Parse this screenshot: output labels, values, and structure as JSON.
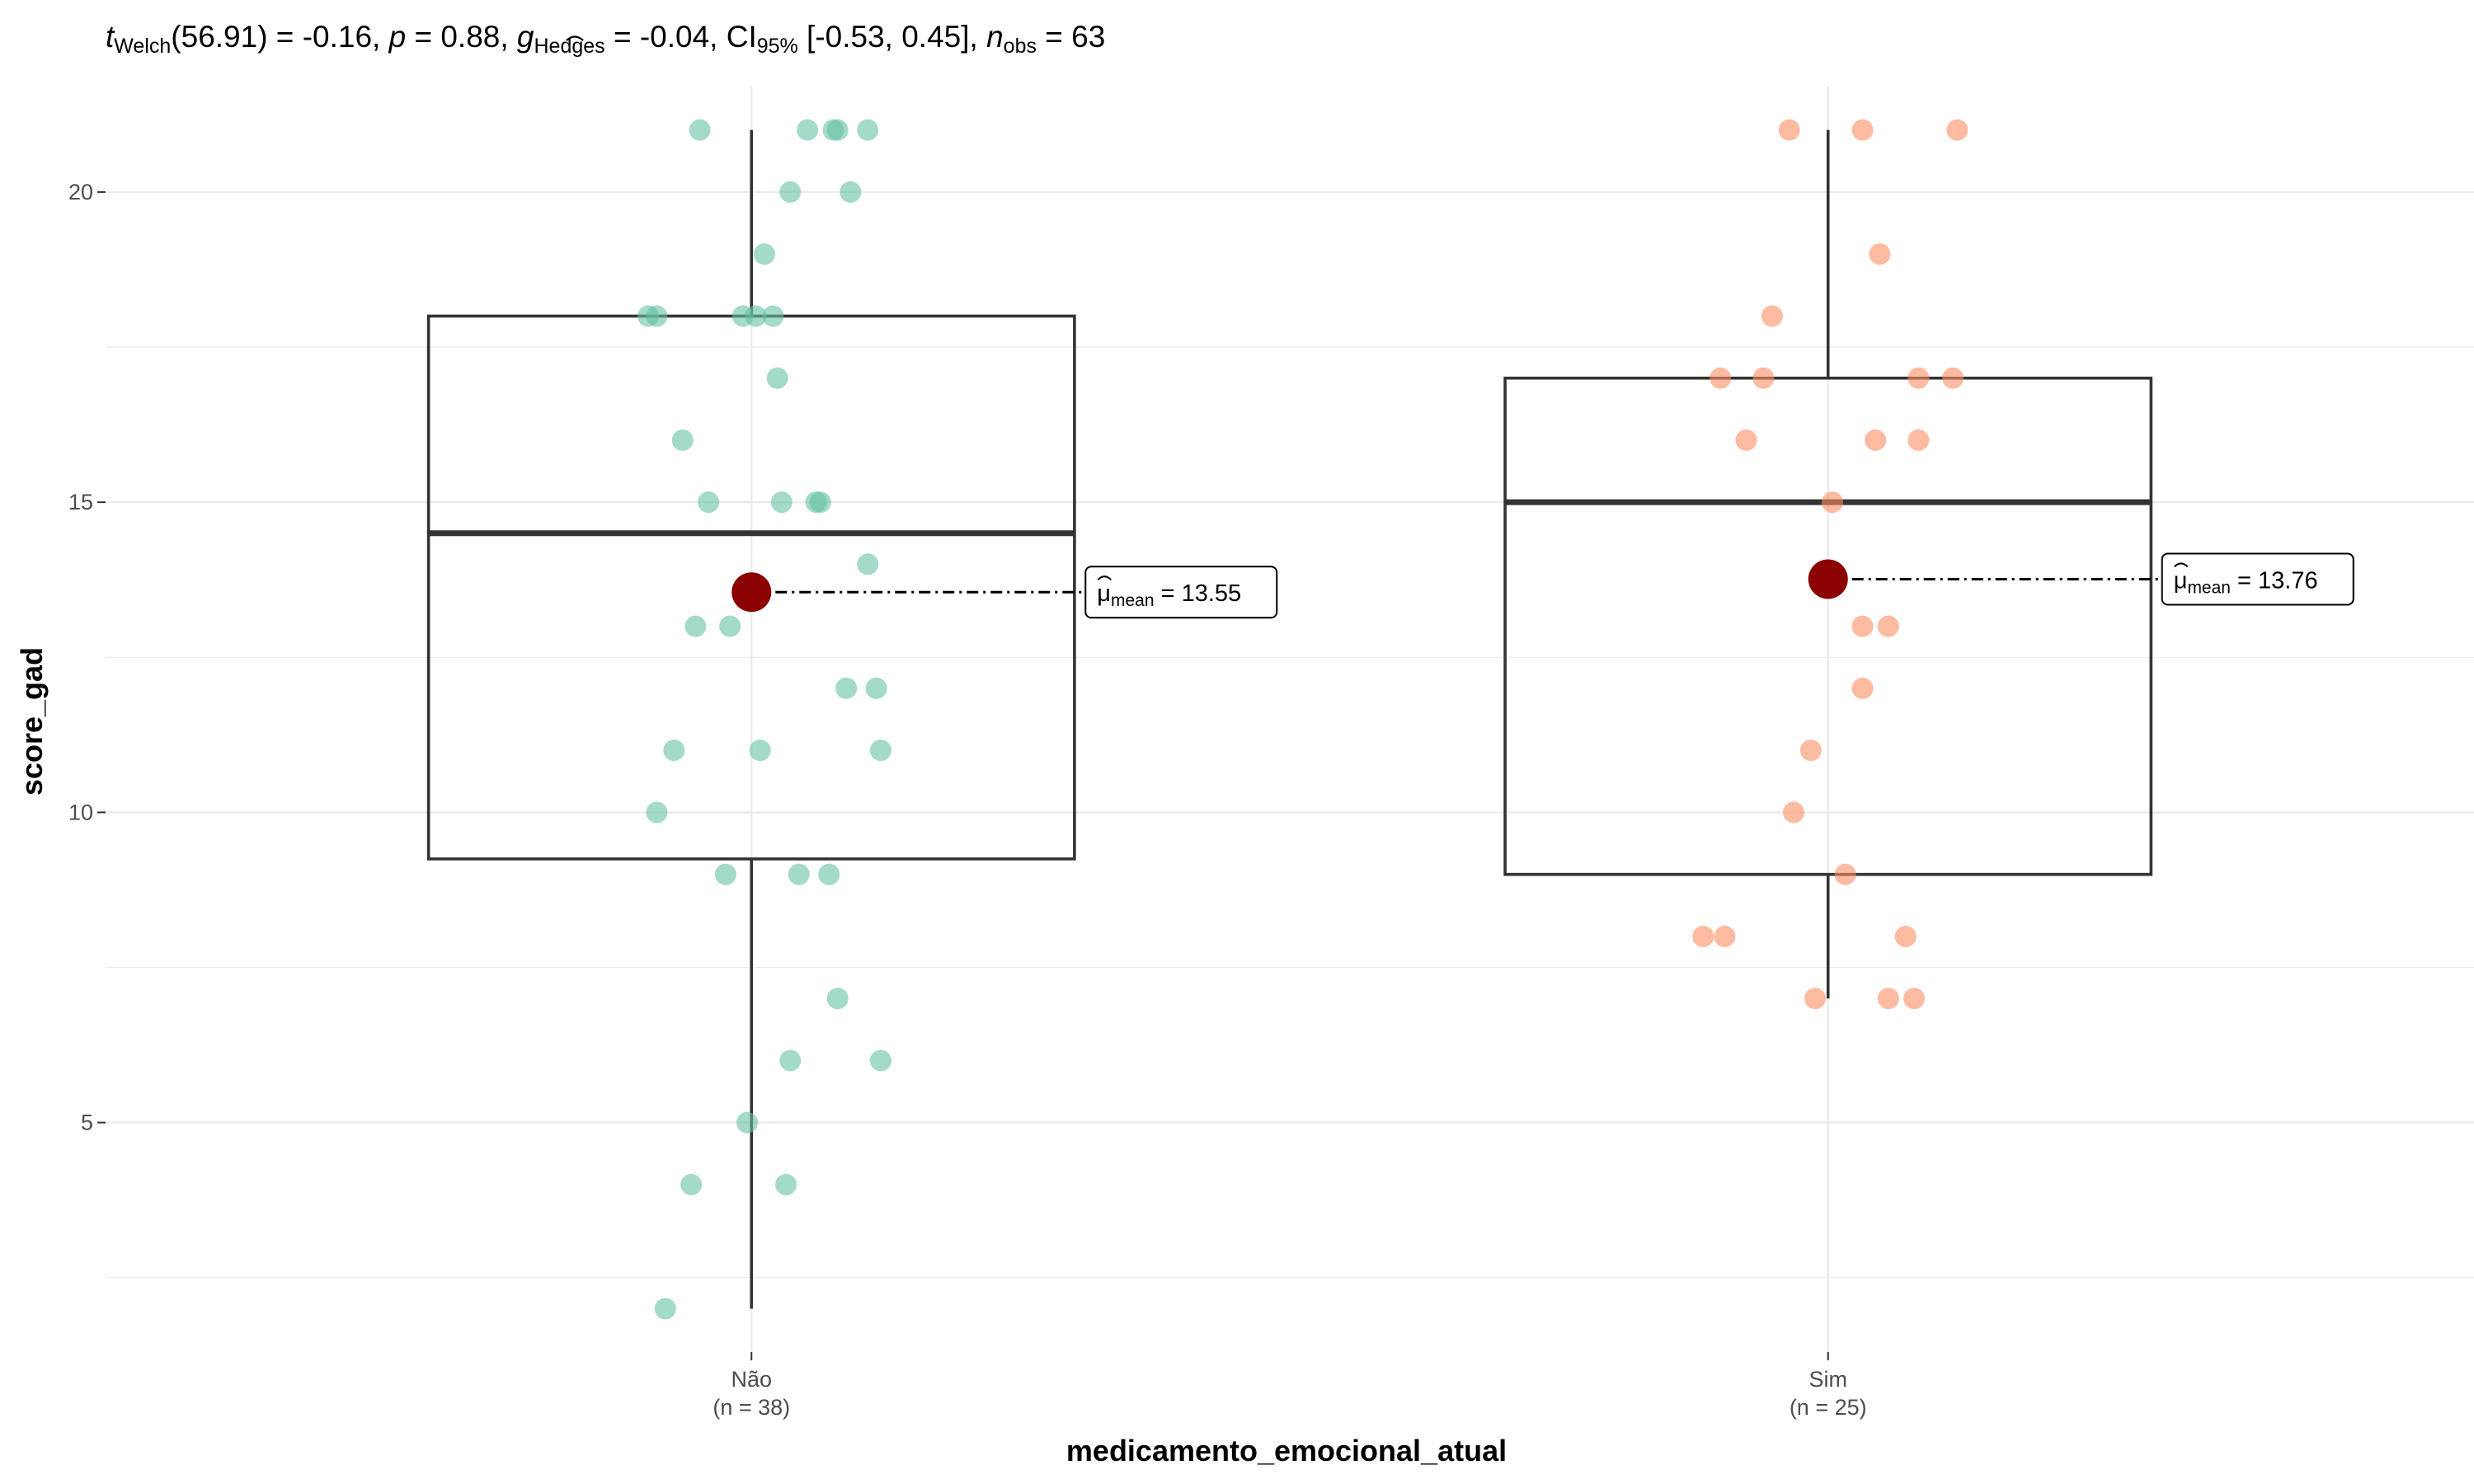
{
  "chart_data": {
    "type": "box",
    "subtitle": {
      "t_main": "t",
      "t_sub": "Welch",
      "t_value": "(56.91) = -0.16, ",
      "p_main": "p",
      "p_value": " = 0.88, ",
      "g_main": "g",
      "g_sub": "Hedges",
      "g_value": " = -0.04, CI",
      "ci_sub": "95%",
      "ci_value": " [-0.53, 0.45], ",
      "n_main": "n",
      "n_sub": "obs",
      "n_value": " = 63"
    },
    "xlabel": "medicamento_emocional_atual",
    "ylabel": "score_gad",
    "ylim": [
      1.3,
      21.7
    ],
    "yticks": [
      5,
      10,
      15,
      20
    ],
    "grid": true,
    "categories": [
      {
        "name": "Não",
        "n_label": "(n = 38)",
        "color": "#66c2a5",
        "box": {
          "min": 2,
          "q1": 9.25,
          "median": 14.5,
          "q3": 18,
          "max": 21
        },
        "mean": 13.55,
        "mean_label_main": "μ",
        "mean_label_sub": "mean",
        "mean_label_value": " = 13.55",
        "points": [
          {
            "x": -0.12,
            "y": 21
          },
          {
            "x": 0.13,
            "y": 21
          },
          {
            "x": 0.19,
            "y": 21
          },
          {
            "x": 0.2,
            "y": 21
          },
          {
            "x": 0.27,
            "y": 21
          },
          {
            "x": 0.09,
            "y": 20
          },
          {
            "x": 0.23,
            "y": 20
          },
          {
            "x": 0.03,
            "y": 19
          },
          {
            "x": -0.24,
            "y": 18
          },
          {
            "x": -0.22,
            "y": 18
          },
          {
            "x": -0.02,
            "y": 18
          },
          {
            "x": 0.01,
            "y": 18
          },
          {
            "x": 0.05,
            "y": 18
          },
          {
            "x": 0.06,
            "y": 17
          },
          {
            "x": -0.16,
            "y": 16
          },
          {
            "x": -0.1,
            "y": 15
          },
          {
            "x": 0.07,
            "y": 15
          },
          {
            "x": 0.15,
            "y": 15
          },
          {
            "x": 0.16,
            "y": 15
          },
          {
            "x": 0.27,
            "y": 14
          },
          {
            "x": -0.13,
            "y": 13
          },
          {
            "x": -0.05,
            "y": 13
          },
          {
            "x": 0.22,
            "y": 12
          },
          {
            "x": 0.29,
            "y": 12
          },
          {
            "x": -0.18,
            "y": 11
          },
          {
            "x": 0.02,
            "y": 11
          },
          {
            "x": 0.3,
            "y": 11
          },
          {
            "x": -0.22,
            "y": 10
          },
          {
            "x": -0.06,
            "y": 9
          },
          {
            "x": 0.11,
            "y": 9
          },
          {
            "x": 0.18,
            "y": 9
          },
          {
            "x": 0.2,
            "y": 7
          },
          {
            "x": 0.09,
            "y": 6
          },
          {
            "x": 0.3,
            "y": 6
          },
          {
            "x": -0.01,
            "y": 5
          },
          {
            "x": -0.14,
            "y": 4
          },
          {
            "x": 0.08,
            "y": 4
          },
          {
            "x": -0.2,
            "y": 2
          }
        ]
      },
      {
        "name": "Sim",
        "n_label": "(n = 25)",
        "color": "#fc8d62",
        "box": {
          "min": 7,
          "q1": 9,
          "median": 15,
          "q3": 17,
          "max": 21
        },
        "mean": 13.76,
        "mean_label_main": "μ",
        "mean_label_sub": "mean",
        "mean_label_value": " = 13.76",
        "points": [
          {
            "x": -0.09,
            "y": 21
          },
          {
            "x": 0.08,
            "y": 21
          },
          {
            "x": 0.3,
            "y": 21
          },
          {
            "x": 0.12,
            "y": 19
          },
          {
            "x": -0.13,
            "y": 18
          },
          {
            "x": -0.25,
            "y": 17
          },
          {
            "x": -0.15,
            "y": 17
          },
          {
            "x": 0.21,
            "y": 17
          },
          {
            "x": 0.29,
            "y": 17
          },
          {
            "x": -0.19,
            "y": 16
          },
          {
            "x": 0.11,
            "y": 16
          },
          {
            "x": 0.21,
            "y": 16
          },
          {
            "x": 0.01,
            "y": 15
          },
          {
            "x": 0.08,
            "y": 13
          },
          {
            "x": 0.14,
            "y": 13
          },
          {
            "x": 0.08,
            "y": 12
          },
          {
            "x": -0.04,
            "y": 11
          },
          {
            "x": -0.08,
            "y": 10
          },
          {
            "x": 0.04,
            "y": 9
          },
          {
            "x": -0.29,
            "y": 8
          },
          {
            "x": -0.24,
            "y": 8
          },
          {
            "x": 0.18,
            "y": 8
          },
          {
            "x": -0.03,
            "y": 7
          },
          {
            "x": 0.14,
            "y": 7
          },
          {
            "x": 0.2,
            "y": 7
          }
        ]
      }
    ],
    "mean_point_color": "#8b0000"
  }
}
